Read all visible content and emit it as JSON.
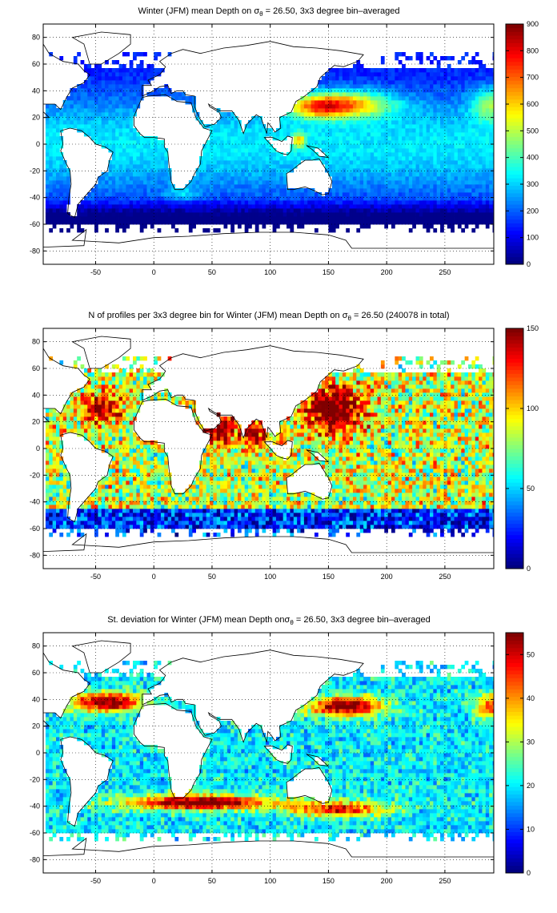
{
  "chart_data": [
    {
      "type": "heatmap",
      "title_pre": "Winter (JFM) mean Depth on ",
      "title_sym": "σ",
      "title_sub": "θ",
      "title_post": " = 26.50, 3x3 degree bin–averaged",
      "xlim": [
        -95,
        292
      ],
      "ylim": [
        -90,
        90
      ],
      "xticks": [
        -50,
        0,
        50,
        100,
        150,
        200,
        250
      ],
      "yticks": [
        -80,
        -60,
        -40,
        -20,
        0,
        20,
        40,
        60,
        80
      ],
      "cbar_range": [
        0,
        900
      ],
      "cbar_ticks": [
        0,
        100,
        200,
        300,
        400,
        500,
        600,
        700,
        800,
        900
      ],
      "colormap": "jet",
      "grid": true
    },
    {
      "type": "heatmap",
      "title_pre": "N of profiles per 3x3 degree bin for Winter (JFM) mean Depth on ",
      "title_sym": "σ",
      "title_sub": "θ",
      "title_post": " = 26.50 (240078 in total)",
      "xlim": [
        -95,
        292
      ],
      "ylim": [
        -90,
        90
      ],
      "xticks": [
        -50,
        0,
        50,
        100,
        150,
        200,
        250
      ],
      "yticks": [
        -80,
        -60,
        -40,
        -20,
        0,
        20,
        40,
        60,
        80
      ],
      "cbar_range": [
        0,
        150
      ],
      "cbar_ticks": [
        0,
        50,
        100,
        150
      ],
      "colormap": "jet",
      "grid": true
    },
    {
      "type": "heatmap",
      "title_pre": "St. deviation for Winter (JFM) mean Depth on",
      "title_sym": "σ",
      "title_sub": "θ",
      "title_post": " = 26.50, 3x3 degree bin–averaged",
      "xlim": [
        -95,
        292
      ],
      "ylim": [
        -90,
        90
      ],
      "xticks": [
        -50,
        0,
        50,
        100,
        150,
        200,
        250
      ],
      "yticks": [
        -80,
        -60,
        -40,
        -20,
        0,
        20,
        40,
        60,
        80
      ],
      "cbar_range": [
        0,
        55
      ],
      "cbar_ticks": [
        0,
        10,
        20,
        30,
        40,
        50
      ],
      "colormap": "jet",
      "grid": true
    }
  ]
}
